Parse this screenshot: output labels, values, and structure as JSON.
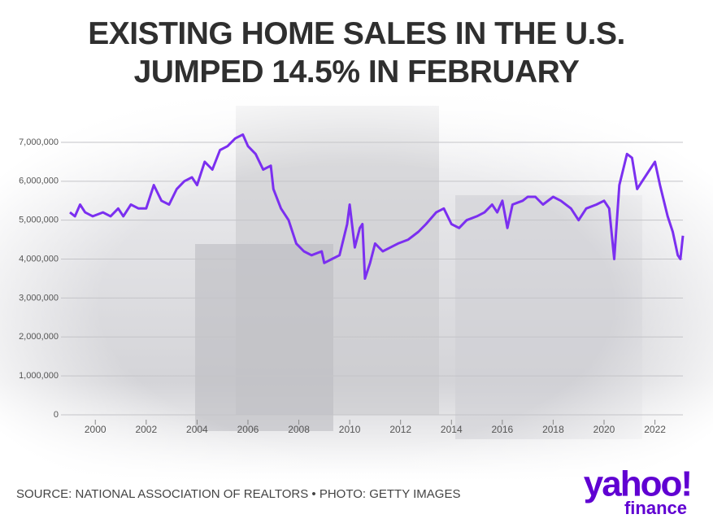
{
  "chart_data": {
    "type": "line",
    "title": "EXISTING HOME SALES IN THE U.S. JUMPED 14.5% IN FEBRUARY",
    "source": "SOURCE: NATIONAL ASSOCIATION OF REALTORS • PHOTO: GETTY IMAGES",
    "logo": {
      "brand": "yahoo!",
      "product": "finance"
    },
    "color": "#7b2ff0",
    "x": [
      1999.0,
      1999.2,
      1999.4,
      1999.6,
      1999.9,
      2000.3,
      2000.6,
      2000.9,
      2001.1,
      2001.4,
      2001.7,
      2002.0,
      2002.3,
      2002.6,
      2002.9,
      2003.2,
      2003.5,
      2003.8,
      2004.0,
      2004.3,
      2004.6,
      2004.9,
      2005.2,
      2005.5,
      2005.8,
      2006.0,
      2006.3,
      2006.6,
      2006.9,
      2007.0,
      2007.3,
      2007.6,
      2007.9,
      2008.2,
      2008.5,
      2008.9,
      2009.0,
      2009.3,
      2009.6,
      2009.9,
      2010.0,
      2010.2,
      2010.4,
      2010.5,
      2010.6,
      2010.8,
      2011.0,
      2011.3,
      2011.6,
      2011.9,
      2012.3,
      2012.7,
      2013.0,
      2013.4,
      2013.7,
      2014.0,
      2014.3,
      2014.6,
      2015.0,
      2015.3,
      2015.6,
      2015.8,
      2016.0,
      2016.2,
      2016.4,
      2016.8,
      2017.0,
      2017.3,
      2017.6,
      2018.0,
      2018.3,
      2018.7,
      2019.0,
      2019.3,
      2019.7,
      2020.0,
      2020.2,
      2020.4,
      2020.6,
      2020.9,
      2021.1,
      2021.3,
      2021.5,
      2021.8,
      2022.0,
      2022.2,
      2022.5,
      2022.7,
      2022.9,
      2023.0,
      2023.1
    ],
    "values": [
      5200000,
      5100000,
      5400000,
      5200000,
      5100000,
      5200000,
      5100000,
      5300000,
      5100000,
      5400000,
      5300000,
      5300000,
      5900000,
      5500000,
      5400000,
      5800000,
      6000000,
      6100000,
      5900000,
      6500000,
      6300000,
      6800000,
      6900000,
      7100000,
      7200000,
      6900000,
      6700000,
      6300000,
      6400000,
      5800000,
      5300000,
      5000000,
      4400000,
      4200000,
      4100000,
      4200000,
      3900000,
      4000000,
      4100000,
      4900000,
      5400000,
      4300000,
      4800000,
      4900000,
      3500000,
      3900000,
      4400000,
      4200000,
      4300000,
      4400000,
      4500000,
      4700000,
      4900000,
      5200000,
      5300000,
      4900000,
      4800000,
      5000000,
      5100000,
      5200000,
      5400000,
      5200000,
      5500000,
      4800000,
      5400000,
      5500000,
      5600000,
      5600000,
      5400000,
      5600000,
      5500000,
      5300000,
      5000000,
      5300000,
      5400000,
      5500000,
      5300000,
      4000000,
      5900000,
      6700000,
      6600000,
      5800000,
      6000000,
      6300000,
      6500000,
      5900000,
      5100000,
      4700000,
      4100000,
      4000000,
      4600000
    ],
    "xlim": [
      1998.65,
      2023.1
    ],
    "xticks": [
      2000,
      2002,
      2004,
      2006,
      2008,
      2010,
      2012,
      2014,
      2016,
      2018,
      2020,
      2022
    ],
    "ylim": [
      0,
      7300000
    ],
    "yticks": [
      0,
      {
        "value": 1000000,
        "label": "1,000,000"
      },
      {
        "value": 2000000,
        "label": "2,000,000"
      },
      {
        "value": 3000000,
        "label": "3,000,000"
      },
      {
        "value": 4000000,
        "label": "4,000,000"
      },
      {
        "value": 5000000,
        "label": "5,000,000"
      },
      {
        "value": 6000000,
        "label": "6,000,000"
      },
      {
        "value": 7000000,
        "label": "7,000,000"
      }
    ],
    "grid": true
  }
}
